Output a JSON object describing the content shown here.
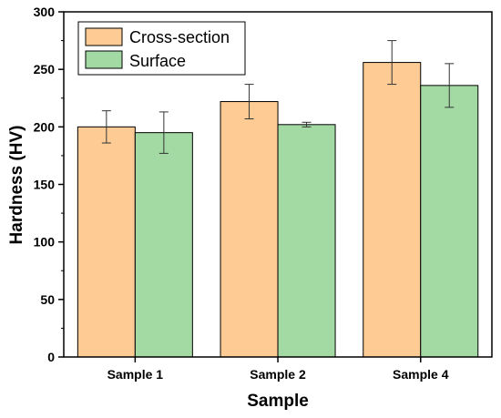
{
  "chart_data": {
    "type": "bar",
    "categories": [
      "Sample 1",
      "Sample 2",
      "Sample 4"
    ],
    "series": [
      {
        "name": "Cross-section",
        "values": [
          200,
          222,
          256
        ],
        "errors": [
          14,
          15,
          19
        ],
        "color": "#FDCB93"
      },
      {
        "name": "Surface",
        "values": [
          195,
          202,
          236
        ],
        "errors": [
          18,
          2,
          19
        ],
        "color": "#A3D9A3"
      }
    ],
    "title": "",
    "xlabel": "Sample",
    "ylabel": "Hardness (HV)",
    "ylim": [
      0,
      300
    ],
    "yticks": [
      0,
      50,
      100,
      150,
      200,
      250,
      300
    ],
    "grid": false,
    "legend_position": "top-left"
  }
}
